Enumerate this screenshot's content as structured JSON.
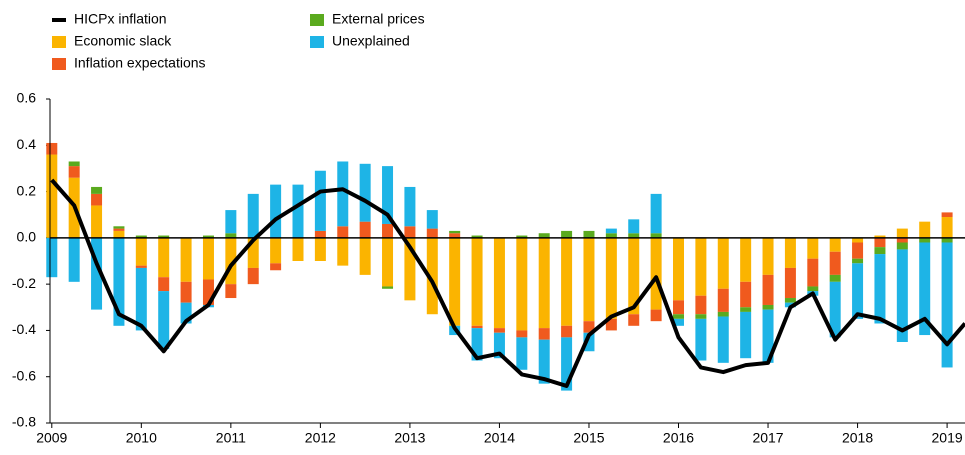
{
  "chart_data": {
    "type": "bar",
    "stacked": true,
    "x": [
      2009,
      2009.25,
      2009.5,
      2009.75,
      2010,
      2010.25,
      2010.5,
      2010.75,
      2011,
      2011.25,
      2011.5,
      2011.75,
      2012,
      2012.25,
      2012.5,
      2012.75,
      2013,
      2013.25,
      2013.5,
      2013.75,
      2014,
      2014.25,
      2014.5,
      2014.75,
      2015,
      2015.25,
      2015.5,
      2015.75,
      2016,
      2016.25,
      2016.5,
      2016.75,
      2017,
      2017.25,
      2017.5,
      2017.75,
      2018,
      2018.25,
      2018.5,
      2018.75,
      2019
    ],
    "series": [
      {
        "name": "HICPx inflation",
        "type": "line",
        "color": "#000000",
        "x": [
          2009,
          2009.25,
          2009.5,
          2009.75,
          2010,
          2010.25,
          2010.5,
          2010.75,
          2011,
          2011.25,
          2011.5,
          2011.75,
          2012,
          2012.25,
          2012.5,
          2012.75,
          2013,
          2013.25,
          2013.5,
          2013.75,
          2014,
          2014.25,
          2014.5,
          2014.75,
          2015,
          2015.25,
          2015.5,
          2015.75,
          2016,
          2016.25,
          2016.5,
          2016.75,
          2017,
          2017.25,
          2017.5,
          2017.75,
          2018,
          2018.25,
          2018.5,
          2018.75,
          2019,
          2019.2
        ],
        "values": [
          0.25,
          0.14,
          -0.11,
          -0.33,
          -0.38,
          -0.49,
          -0.36,
          -0.29,
          -0.12,
          -0.01,
          0.08,
          0.14,
          0.2,
          0.21,
          0.16,
          0.1,
          -0.04,
          -0.19,
          -0.39,
          -0.52,
          -0.5,
          -0.59,
          -0.61,
          -0.64,
          -0.42,
          -0.34,
          -0.3,
          -0.17,
          -0.43,
          -0.56,
          -0.58,
          -0.55,
          -0.54,
          -0.3,
          -0.24,
          -0.44,
          -0.33,
          -0.35,
          -0.4,
          -0.35,
          -0.46,
          -0.37
        ]
      },
      {
        "name": "Economic slack",
        "color": "#fbb400",
        "values": [
          0.36,
          0.26,
          0.14,
          0.03,
          -0.12,
          -0.17,
          -0.19,
          -0.18,
          -0.2,
          -0.13,
          -0.11,
          -0.1,
          -0.1,
          -0.12,
          -0.16,
          -0.21,
          -0.27,
          -0.33,
          -0.38,
          -0.38,
          -0.39,
          -0.4,
          -0.39,
          -0.38,
          -0.36,
          -0.35,
          -0.33,
          -0.31,
          -0.27,
          -0.25,
          -0.22,
          -0.19,
          -0.16,
          -0.13,
          -0.09,
          -0.06,
          -0.02,
          0.01,
          0.04,
          0.07,
          0.09
        ]
      },
      {
        "name": "Inflation expectations",
        "color": "#f05a1e",
        "values": [
          0.05,
          0.05,
          0.05,
          0.01,
          -0.01,
          -0.06,
          -0.09,
          -0.11,
          -0.06,
          -0.07,
          -0.03,
          0,
          0.03,
          0.05,
          0.07,
          0.06,
          0.05,
          0.04,
          0.02,
          -0.01,
          -0.02,
          -0.03,
          -0.05,
          -0.05,
          -0.05,
          -0.05,
          -0.05,
          -0.05,
          -0.06,
          -0.08,
          -0.1,
          -0.11,
          -0.13,
          -0.13,
          -0.12,
          -0.1,
          -0.07,
          -0.04,
          -0.02,
          0,
          0.02
        ]
      },
      {
        "name": "External prices",
        "color": "#5aaa1e",
        "values": [
          0,
          0.02,
          0.03,
          0.01,
          0.01,
          0.01,
          0,
          0.01,
          0.02,
          0,
          0,
          0,
          0,
          0,
          0,
          -0.01,
          0,
          0,
          0.01,
          0.01,
          0,
          0.01,
          0.02,
          0.03,
          0.03,
          0.02,
          0.02,
          0.02,
          -0.02,
          -0.02,
          -0.02,
          -0.02,
          -0.02,
          -0.02,
          -0.02,
          -0.03,
          -0.02,
          -0.03,
          -0.03,
          -0.02,
          -0.02
        ]
      },
      {
        "name": "Unexplained",
        "color": "#1eb4e6",
        "values": [
          -0.17,
          -0.19,
          -0.31,
          -0.38,
          -0.27,
          -0.25,
          -0.09,
          -0.01,
          0.1,
          0.19,
          0.23,
          0.23,
          0.26,
          0.28,
          0.25,
          0.25,
          0.17,
          0.08,
          -0.04,
          -0.14,
          -0.11,
          -0.14,
          -0.19,
          -0.23,
          -0.08,
          0.02,
          0.06,
          0.17,
          -0.03,
          -0.18,
          -0.2,
          -0.2,
          -0.23,
          -0.02,
          -0.02,
          -0.24,
          -0.24,
          -0.3,
          -0.4,
          -0.4,
          -0.54
        ]
      }
    ],
    "xlim": [
      2008.98,
      2019.2
    ],
    "xticks": [
      2009,
      2010,
      2011,
      2012,
      2013,
      2014,
      2015,
      2016,
      2017,
      2018,
      2019
    ],
    "ylim": [
      -0.8,
      0.6
    ],
    "yticks": [
      -0.8,
      -0.6,
      -0.4,
      -0.2,
      {
        "value": 0,
        "label": "0.0"
      },
      0.2,
      0.4,
      0.6
    ],
    "grid": false
  }
}
